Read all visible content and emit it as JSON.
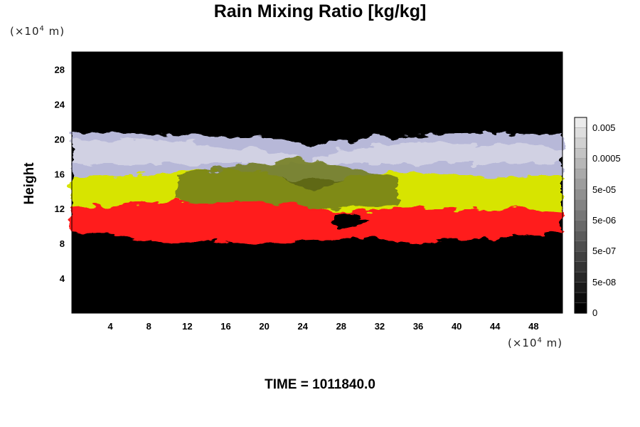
{
  "chart_data": {
    "type": "heatmap",
    "title": "Rain Mixing Ratio [kg/kg]",
    "ylabel": "Height",
    "y_unit_label": "(×10",
    "x_unit_label": "(×10",
    "unit_exponent": "4",
    "unit_suffix": " m)",
    "footer": "TIME = 1011840.0",
    "xlim": [
      0,
      51
    ],
    "ylim": [
      0,
      30
    ],
    "x_ticks": [
      "4",
      "8",
      "12",
      "16",
      "20",
      "24",
      "28",
      "32",
      "36",
      "40",
      "44",
      "48"
    ],
    "y_ticks": [
      "4",
      "8",
      "12",
      "16",
      "20",
      "24",
      "28"
    ],
    "colorbar_labels": [
      "0.005",
      "0.0005",
      "5e-05",
      "5e-06",
      "5e-07",
      "5e-08",
      "0"
    ],
    "layers": [
      {
        "name": "red band",
        "color": "#ff1a1a",
        "y_range": [
          8.5,
          12
        ]
      },
      {
        "name": "yellow band",
        "color": "#d8e600",
        "y_range": [
          12,
          15.5
        ]
      },
      {
        "name": "lavender band",
        "color": "#b8b8dc",
        "y_range": [
          15.5,
          20.5
        ]
      }
    ],
    "background_color": "#000000"
  }
}
